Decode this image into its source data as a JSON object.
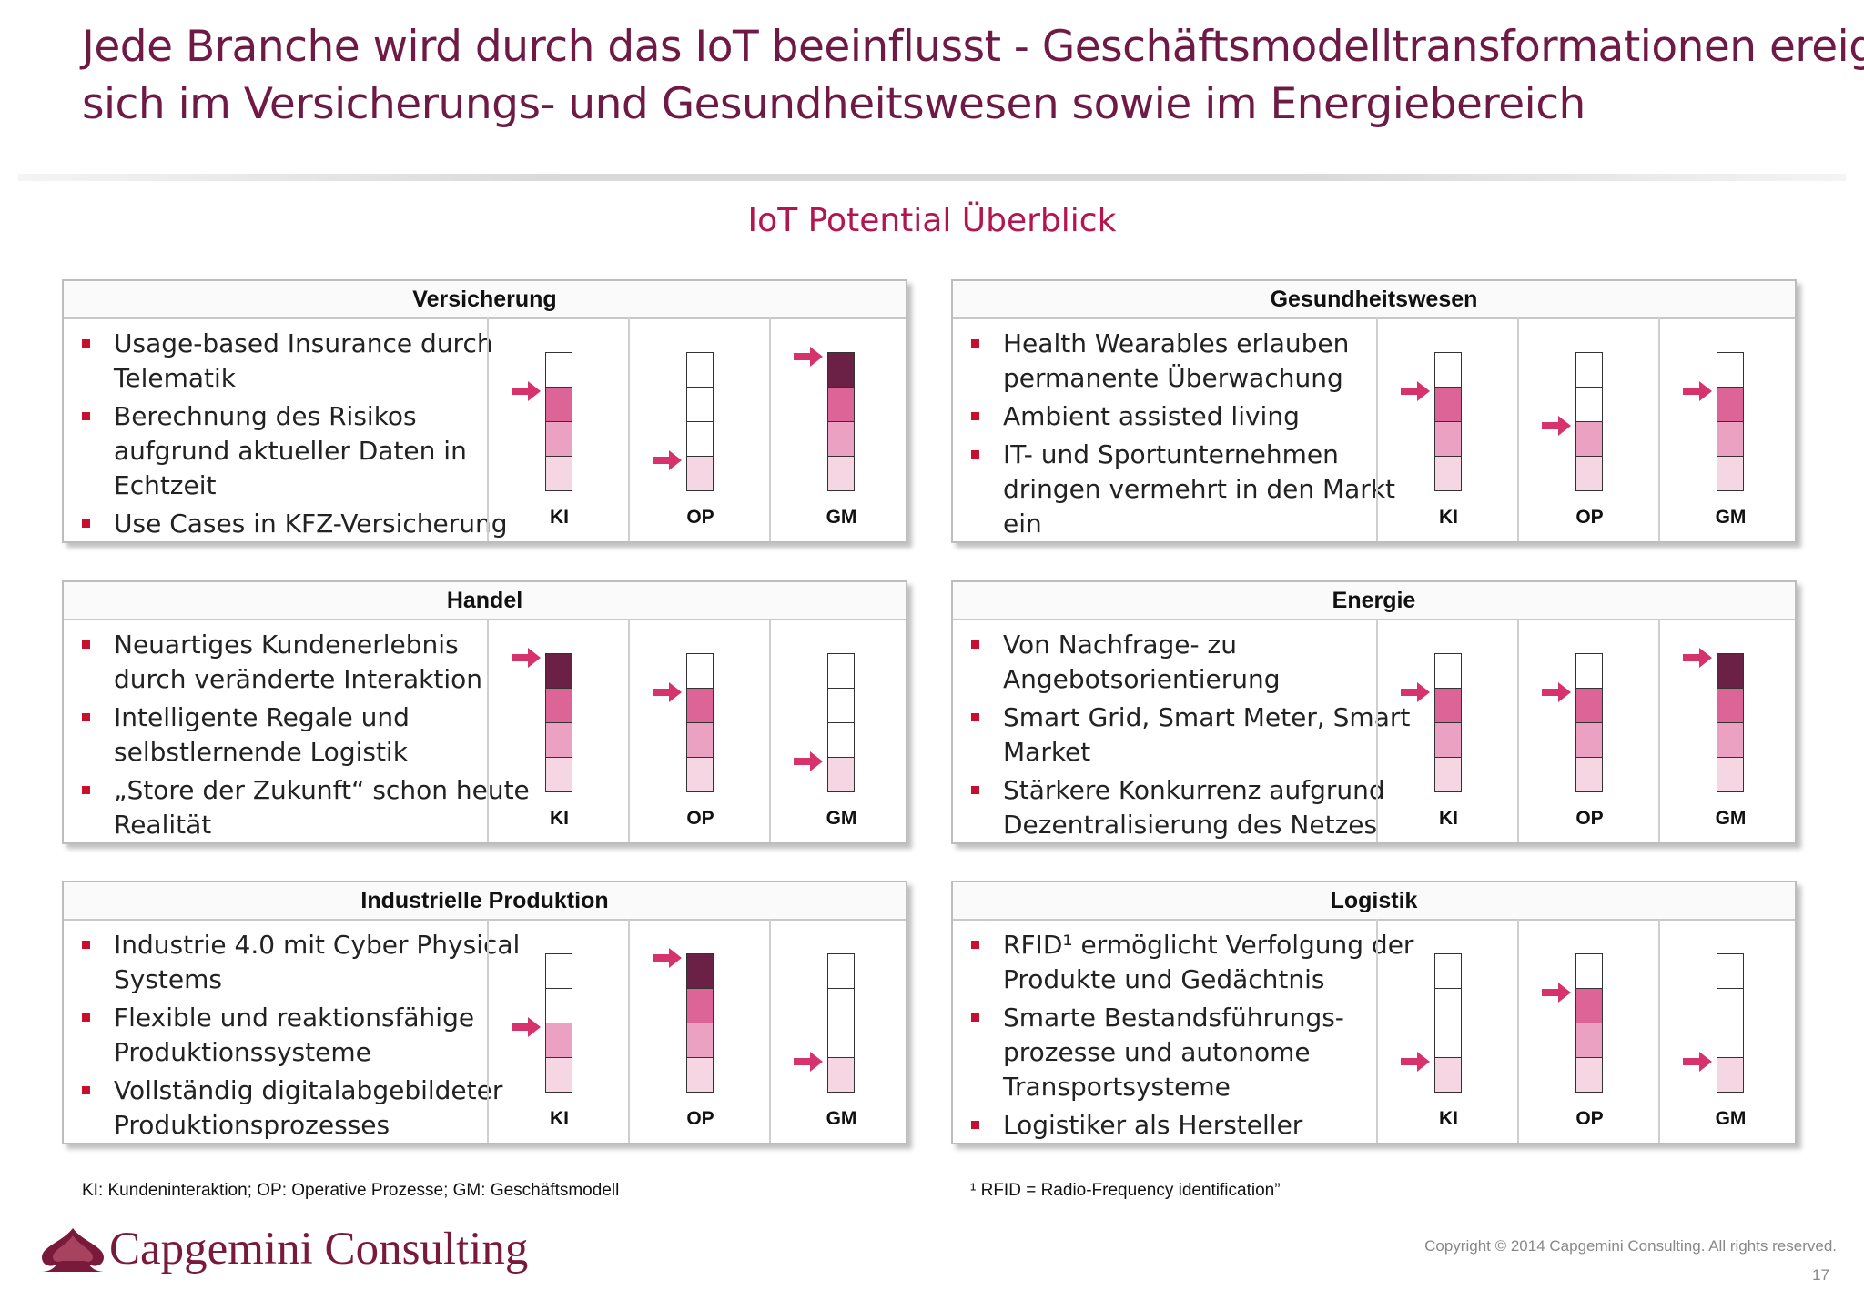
{
  "title": {
    "line1": "Jede Branche wird durch das IoT beeinflusst - Geschäftsmodelltransformationen ereignen",
    "line2": "sich im Versicherungs- und Gesundheitswesen sowie im Energiebereich"
  },
  "subtitle": "IoT Potential Überblick",
  "column_labels": [
    "KI",
    "OP",
    "GM"
  ],
  "level_colors": {
    "1": "#f6d6e3",
    "2": "#eba2c2",
    "3": "#dc6496",
    "4": "#6b2146"
  },
  "arrow_color": "#d6336c",
  "panels": [
    {
      "name": "Versicherung",
      "bullets": [
        "Usage-based Insurance durch Telematik",
        "Berechnung des Risikos aufgrund aktueller Daten in Echtzeit",
        "Use Cases in KFZ-Versicherung"
      ],
      "levels": [
        3,
        1,
        4
      ]
    },
    {
      "name": "Gesundheitswesen",
      "bullets": [
        "Health Wearables erlauben permanente Überwachung",
        "Ambient assisted living",
        "IT- und Sportunternehmen dringen vermehrt in den Markt ein"
      ],
      "levels": [
        3,
        2,
        3
      ]
    },
    {
      "name": "Handel",
      "bullets": [
        "Neuartiges Kundenerlebnis durch veränderte Interaktion",
        "Intelligente Regale und selbstlernende Logistik",
        "„Store der Zukunft“ schon heute Realität"
      ],
      "levels": [
        4,
        3,
        1
      ]
    },
    {
      "name": "Energie",
      "bullets": [
        "Von Nachfrage- zu Angebotsorientierung",
        "Smart Grid, Smart Meter, Smart Market",
        "Stärkere Konkurrenz aufgrund Dezentralisierung des Netzes"
      ],
      "levels": [
        3,
        3,
        4
      ]
    },
    {
      "name": "Industrielle Produktion",
      "bullets": [
        "Industrie 4.0 mit Cyber Physical Systems",
        "Flexible und reaktionsfähige Produktionssysteme",
        "Vollständig digitalabgebildeter Produktionsprozesses"
      ],
      "levels": [
        2,
        4,
        1
      ]
    },
    {
      "name": "Logistik",
      "bullets": [
        "RFID¹ ermöglicht Verfolgung der Produkte und Gedächtnis",
        "Smarte Bestandsführungs-prozesse und autonome Transportsysteme",
        "Logistiker als Hersteller"
      ],
      "levels": [
        1,
        3,
        1
      ]
    }
  ],
  "footnote_left": "KI: Kundeninteraktion; OP: Operative Prozesse; GM: Geschäftsmodell",
  "footnote_right": "¹ RFID = Radio-Frequency identification”",
  "logo_text": "Capgemini Consulting",
  "copyright": "Copyright © 2014 Capgemini Consulting. All rights reserved.",
  "page_number": "17"
}
